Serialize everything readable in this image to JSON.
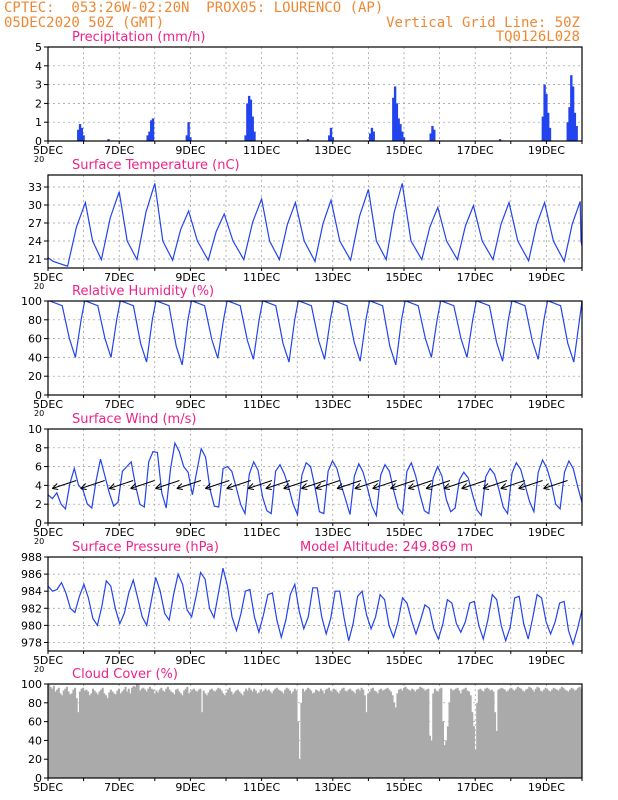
{
  "header": {
    "line1": "CPTEC:  053:26W-02:20N  PROX05: LOURENCO (AP)",
    "line2": "05DEC2020 50Z (GMT)",
    "right_line1": "Vertical Grid Line: 50Z",
    "right_line2": "TQ0126L028",
    "color": "#ee8833"
  },
  "colors": {
    "title": "#ee2288",
    "series": "#2244ee",
    "cloud": "#aaaaaa",
    "grid": "#999999"
  },
  "x_axis": {
    "start_label": "5DEC",
    "tick_labels": [
      "5DEC",
      "7DEC",
      "9DEC",
      "11DEC",
      "13DEC",
      "15DEC",
      "17DEC",
      "19DEC"
    ],
    "year_fragment": "20"
  },
  "chart_data": [
    {
      "id": "precip",
      "type": "bar",
      "title": "Precipitation (mm/h)",
      "ylim": [
        0,
        5
      ],
      "yticks": [
        0,
        1,
        2,
        3,
        4,
        5
      ],
      "day_range": [
        5,
        20
      ],
      "bars": [
        [
          5.85,
          0.6
        ],
        [
          5.9,
          0.9
        ],
        [
          5.95,
          0.7
        ],
        [
          6.0,
          0.3
        ],
        [
          6.7,
          0.1
        ],
        [
          7.8,
          0.3
        ],
        [
          7.85,
          0.5
        ],
        [
          7.9,
          1.1
        ],
        [
          7.95,
          1.2
        ],
        [
          8.9,
          0.3
        ],
        [
          8.95,
          1.0
        ],
        [
          9.0,
          0.2
        ],
        [
          10.55,
          0.3
        ],
        [
          10.6,
          2.0
        ],
        [
          10.65,
          2.4
        ],
        [
          10.7,
          2.2
        ],
        [
          10.75,
          1.3
        ],
        [
          10.8,
          0.5
        ],
        [
          12.3,
          0.1
        ],
        [
          12.9,
          0.3
        ],
        [
          12.95,
          0.7
        ],
        [
          13.0,
          0.2
        ],
        [
          14.05,
          0.4
        ],
        [
          14.1,
          0.7
        ],
        [
          14.15,
          0.5
        ],
        [
          14.7,
          2.3
        ],
        [
          14.75,
          2.9
        ],
        [
          14.8,
          2.0
        ],
        [
          14.85,
          1.2
        ],
        [
          14.9,
          0.9
        ],
        [
          14.95,
          0.5
        ],
        [
          15.0,
          0.2
        ],
        [
          15.75,
          0.4
        ],
        [
          15.8,
          0.8
        ],
        [
          15.85,
          0.6
        ],
        [
          17.7,
          0.1
        ],
        [
          18.9,
          1.3
        ],
        [
          18.95,
          3.0
        ],
        [
          19.0,
          2.5
        ],
        [
          19.05,
          1.5
        ],
        [
          19.1,
          0.7
        ],
        [
          19.6,
          1.0
        ],
        [
          19.65,
          1.8
        ],
        [
          19.7,
          3.5
        ],
        [
          19.75,
          2.9
        ],
        [
          19.8,
          1.5
        ],
        [
          19.85,
          0.8
        ]
      ]
    },
    {
      "id": "temp",
      "type": "line",
      "title": "Surface Temperature (nC)",
      "ylim": [
        19.5,
        35
      ],
      "yticks": [
        21,
        24,
        27,
        30,
        33
      ],
      "day_range": [
        5,
        20
      ],
      "min_times": [
        5.55,
        6.5,
        7.5,
        8.5,
        9.5,
        10.5,
        11.5,
        12.5,
        13.5,
        14.5,
        15.5,
        16.5,
        17.5,
        18.5,
        19.5
      ],
      "min_values": [
        19.8,
        20.9,
        20.9,
        20.8,
        20.8,
        20.9,
        20.9,
        20.6,
        20.8,
        20.9,
        20.9,
        20.9,
        20.9,
        20.7,
        20.6
      ],
      "max_times": [
        6.05,
        7.0,
        8.0,
        8.95,
        9.95,
        11.0,
        11.95,
        12.95,
        14.0,
        14.95,
        15.95,
        16.95,
        17.95,
        18.95,
        19.95
      ],
      "max_values": [
        30.4,
        32.2,
        33.6,
        29.0,
        28.5,
        31.0,
        30.4,
        30.8,
        32.6,
        33.6,
        29.6,
        29.9,
        30.4,
        30.4,
        30.6
      ],
      "end_value": 23.2
    },
    {
      "id": "rh",
      "type": "line",
      "title": "Relative Humidity (%)",
      "ylim": [
        0,
        100
      ],
      "yticks": [
        0,
        20,
        40,
        60,
        80,
        100
      ],
      "day_range": [
        5,
        20
      ],
      "min_values": [
        40,
        40,
        35,
        32,
        39,
        38,
        35,
        38,
        36,
        32,
        40,
        40,
        36,
        38,
        35
      ],
      "max_value": 100,
      "end_value": 90
    },
    {
      "id": "wind",
      "type": "line",
      "title": "Surface Wind (m/s)",
      "ylim": [
        0,
        10
      ],
      "yticks": [
        0,
        2,
        4,
        6,
        8,
        10
      ],
      "day_range": [
        5,
        20
      ],
      "speeds": [
        3.0,
        2.6,
        3.2,
        2.0,
        1.5,
        4.2,
        5.8,
        4.0,
        3.5,
        2.0,
        1.6,
        4.5,
        6.8,
        5.0,
        3.2,
        1.8,
        2.2,
        5.5,
        6.0,
        6.5,
        4.0,
        2.0,
        1.7,
        6.5,
        7.6,
        7.5,
        3.2,
        1.6,
        5.8,
        8.5,
        7.6,
        6.0,
        5.4,
        3.0,
        5.5,
        7.9,
        7.0,
        3.6,
        1.8,
        1.7,
        5.8,
        6.0,
        5.5,
        3.8,
        2.0,
        1.0,
        5.2,
        6.5,
        5.6,
        2.8,
        1.3,
        1.0,
        5.5,
        6.2,
        5.2,
        3.8,
        2.0,
        0.9,
        5.1,
        6.4,
        6.0,
        3.8,
        1.2,
        1.0,
        5.5,
        6.6,
        5.8,
        4.0,
        2.5,
        0.9,
        5.0,
        6.3,
        5.4,
        3.7,
        1.8,
        0.8,
        5.1,
        6.2,
        5.5,
        3.4,
        1.6,
        1.0,
        5.5,
        6.4,
        5.0,
        3.0,
        1.3,
        1.0,
        4.8,
        6.0,
        5.0,
        2.5,
        1.2,
        1.6,
        4.6,
        5.4,
        4.8,
        3.0,
        1.4,
        0.8,
        4.9,
        5.8,
        5.2,
        3.6,
        1.7,
        1.0,
        5.3,
        6.4,
        5.7,
        4.0,
        2.3,
        1.2,
        5.4,
        6.7,
        5.8,
        4.2,
        2.0,
        1.5,
        5.4,
        6.6,
        5.8,
        3.9,
        2.2
      ],
      "arrow_days": [
        5.4,
        6.2,
        7.0,
        7.6,
        8.3,
        8.9,
        9.7,
        10.3,
        10.9,
        11.4,
        11.9,
        12.4,
        12.8,
        13.4,
        13.9,
        14.4,
        14.9,
        15.4,
        15.9,
        16.4,
        16.9,
        17.5,
        18.0,
        18.5,
        19.2
      ]
    },
    {
      "id": "pres",
      "type": "line",
      "title": "Surface Pressure (hPa)",
      "extra_label": "Model Altitude: 249.869 m",
      "ylim": [
        977,
        988
      ],
      "yticks": [
        978,
        980,
        982,
        984,
        986,
        988
      ],
      "day_range": [
        5,
        20
      ],
      "values": [
        984.6,
        984.0,
        984.2,
        985.0,
        983.8,
        982.0,
        981.5,
        983.4,
        984.8,
        983.2,
        980.8,
        980.0,
        982.2,
        985.2,
        984.6,
        982.0,
        980.2,
        981.4,
        983.8,
        985.3,
        983.2,
        981.0,
        980.0,
        982.8,
        985.6,
        984.0,
        981.4,
        980.6,
        983.6,
        986.0,
        984.8,
        981.8,
        981.0,
        983.4,
        986.2,
        985.4,
        982.0,
        980.9,
        983.8,
        986.7,
        984.6,
        981.0,
        979.4,
        981.4,
        984.0,
        984.2,
        981.0,
        979.2,
        981.2,
        983.6,
        983.8,
        980.6,
        978.6,
        980.6,
        983.6,
        984.8,
        981.6,
        979.6,
        981.0,
        984.4,
        984.4,
        981.0,
        979.0,
        980.8,
        984.0,
        984.0,
        980.8,
        978.2,
        980.2,
        983.4,
        984.0,
        981.2,
        979.6,
        981.0,
        983.6,
        983.0,
        980.0,
        978.6,
        980.4,
        983.2,
        982.6,
        980.6,
        979.0,
        980.6,
        982.4,
        982.0,
        979.6,
        978.4,
        980.2,
        983.0,
        982.6,
        980.2,
        979.2,
        980.4,
        982.6,
        982.8,
        980.0,
        978.4,
        980.6,
        983.6,
        983.0,
        980.0,
        978.2,
        979.8,
        983.2,
        983.4,
        980.2,
        978.4,
        980.8,
        983.6,
        983.2,
        980.4,
        979.0,
        980.4,
        982.6,
        982.8,
        979.4,
        977.8,
        979.6,
        981.8
      ]
    },
    {
      "id": "cloud",
      "type": "bar",
      "title": "Cloud Cover (%)",
      "ylim": [
        0,
        100
      ],
      "yticks": [
        0,
        20,
        40,
        60,
        80,
        100
      ],
      "day_range": [
        5,
        20
      ],
      "values": [
        99,
        97,
        95,
        98,
        92,
        94,
        96,
        90,
        88,
        93,
        95,
        97,
        92,
        89,
        90,
        94,
        96,
        85,
        70,
        92,
        95,
        96,
        93,
        94,
        92,
        88,
        90,
        95,
        93,
        91,
        89,
        92,
        94,
        96,
        90,
        88,
        85,
        91,
        94,
        92,
        90,
        89,
        93,
        95,
        90,
        92,
        94,
        97,
        92,
        95,
        90,
        96,
        98,
        97,
        100,
        99,
        93,
        95,
        96,
        94,
        92,
        95,
        97,
        95,
        94,
        90,
        93,
        91,
        94,
        96,
        93,
        92,
        95,
        97,
        94,
        92,
        91,
        89,
        94,
        95,
        92,
        90,
        88,
        93,
        95,
        97,
        90,
        92,
        94,
        95,
        93,
        92,
        94,
        95,
        70,
        93,
        90,
        88,
        91,
        94,
        95,
        93,
        92,
        94,
        96,
        95,
        93,
        90,
        88,
        91,
        94,
        96,
        92,
        89,
        91,
        93,
        94,
        92,
        90,
        88,
        92,
        95,
        93,
        96,
        94,
        92,
        95,
        93,
        90,
        91,
        94,
        92,
        93,
        95,
        93,
        94,
        92,
        90,
        93,
        95,
        96,
        94,
        93,
        92,
        90,
        94,
        96,
        95,
        93,
        90,
        92,
        95,
        93,
        60,
        20,
        80,
        95,
        92,
        94,
        96,
        95,
        93,
        90,
        91,
        94,
        93,
        92,
        95,
        93,
        90,
        94,
        95,
        96,
        93,
        92,
        95,
        94,
        92,
        90,
        93,
        95,
        96,
        93,
        92,
        94,
        95,
        93,
        92,
        90,
        94,
        95,
        93,
        96,
        94,
        88,
        70,
        90,
        92,
        95,
        96,
        93,
        92,
        90,
        94,
        95,
        93,
        94,
        95,
        96,
        94,
        92,
        88,
        80,
        75,
        90,
        94,
        95,
        93,
        96,
        97,
        95,
        94,
        93,
        95,
        94,
        92,
        94,
        95,
        97,
        96,
        95,
        93,
        94,
        95,
        45,
        40,
        90,
        95,
        93,
        92,
        95,
        96,
        60,
        35,
        40,
        55,
        80,
        95,
        93,
        94,
        95,
        96,
        93,
        90,
        94,
        95,
        96,
        93,
        92,
        88,
        70,
        55,
        30,
        80,
        94,
        95,
        93,
        92,
        95,
        96,
        95,
        93,
        94,
        92,
        70,
        50,
        94,
        95,
        96,
        95,
        94,
        92,
        93,
        95,
        96,
        94,
        93,
        95,
        97,
        96,
        95,
        93,
        92,
        94,
        95,
        97,
        96,
        94,
        92,
        95,
        97,
        96,
        93,
        92,
        94,
        96,
        95,
        93,
        92,
        94,
        96,
        95,
        94,
        93,
        95,
        97,
        96,
        94,
        93,
        92,
        94,
        96,
        95,
        93,
        94,
        96,
        97,
        95
      ]
    }
  ]
}
